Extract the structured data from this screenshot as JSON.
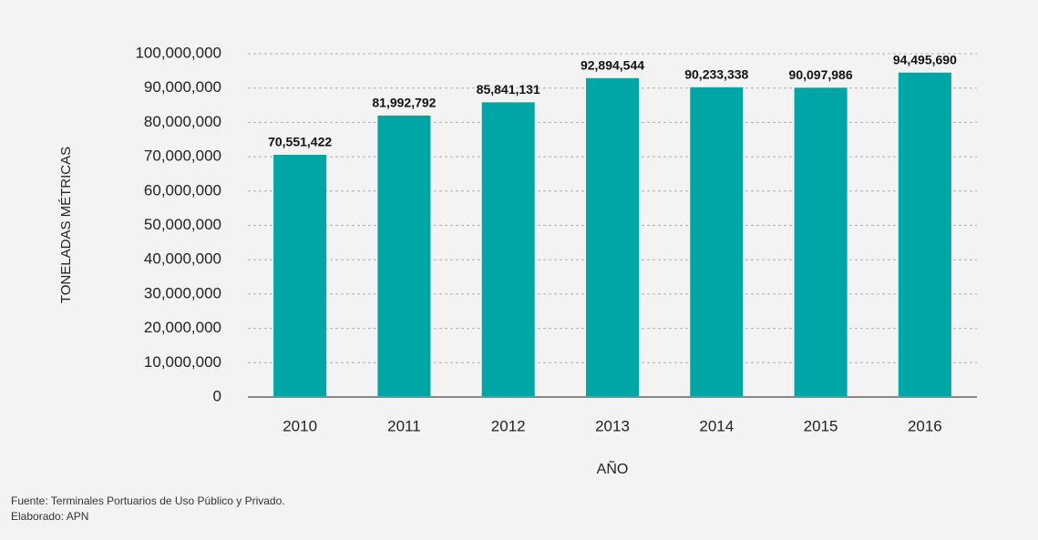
{
  "chart_data": {
    "type": "bar",
    "ylabel": "TONELADAS MÉTRICAS",
    "xlabel": "AÑO",
    "categories": [
      "2010",
      "2011",
      "2012",
      "2013",
      "2014",
      "2015",
      "2016"
    ],
    "values": [
      70551422,
      81992792,
      85841131,
      92894544,
      90233338,
      90097986,
      94495690
    ],
    "value_labels": [
      "70,551,422",
      "81,992,792",
      "85,841,131",
      "92,894,544",
      "90,233,338",
      "90,097,986",
      "94,495,690"
    ],
    "color": "#00a5a5",
    "ylim": [
      0,
      100000000
    ],
    "yticks": [
      0,
      {
        "value": 10000000,
        "label": "10,000,000"
      },
      {
        "value": 20000000,
        "label": "20,000,000"
      },
      {
        "value": 30000000,
        "label": "30,000,000"
      },
      {
        "value": 40000000,
        "label": "40,000,000"
      },
      {
        "value": 50000000,
        "label": "50,000,000"
      },
      {
        "value": 60000000,
        "label": "60,000,000"
      },
      {
        "value": 70000000,
        "label": "70,000,000"
      },
      {
        "value": 80000000,
        "label": "80,000,000"
      },
      {
        "value": 90000000,
        "label": "90,000,000"
      },
      {
        "value": 100000000,
        "label": "100,000,000"
      }
    ],
    "grid": true,
    "source": "Fuente: Terminales Portuarios de Uso Público y Privado.",
    "credit": "Elaborado: APN"
  }
}
